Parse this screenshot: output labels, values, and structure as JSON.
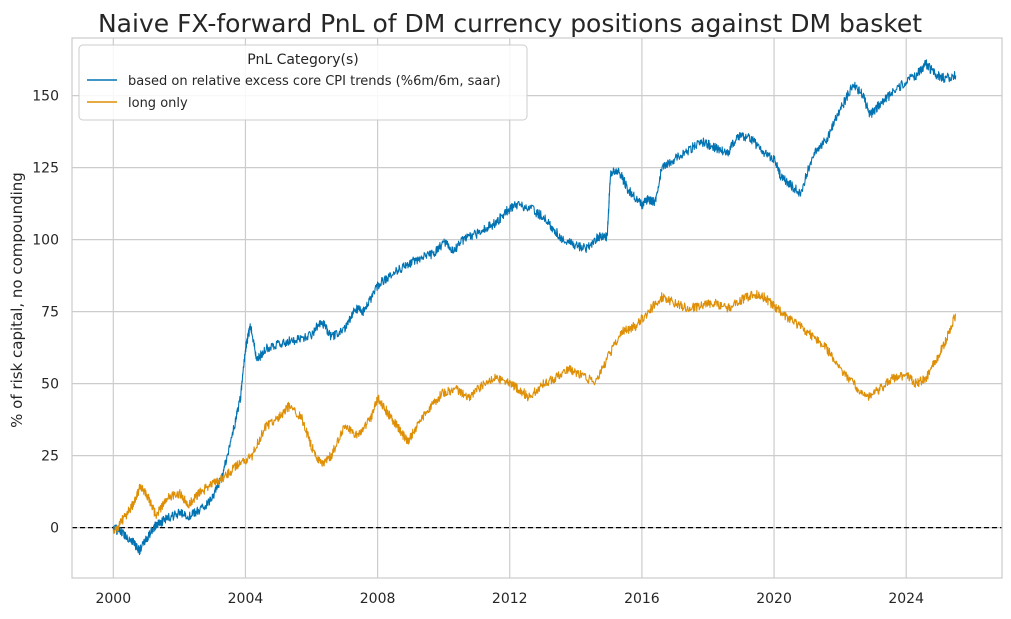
{
  "chart_data": {
    "type": "line",
    "title": "Naive FX-forward PnL of DM currency positions against DM basket",
    "xlabel": "",
    "ylabel": "% of risk capital, no compounding",
    "xlim": [
      1998.75,
      2026.9
    ],
    "ylim": [
      -17.5,
      170
    ],
    "x_ticks": [
      2000,
      2004,
      2008,
      2012,
      2016,
      2020,
      2024
    ],
    "x_tick_labels": [
      "2000",
      "2004",
      "2008",
      "2012",
      "2016",
      "2020",
      "2024"
    ],
    "y_ticks": [
      0,
      25,
      50,
      75,
      100,
      125,
      150
    ],
    "y_tick_labels": [
      "0",
      "25",
      "50",
      "75",
      "100",
      "125",
      "150"
    ],
    "grid": true,
    "reference_line": {
      "y": 0,
      "style": "dashed",
      "color": "#000000"
    },
    "legend": {
      "title": "PnL Category(s)",
      "placement": "top-left"
    },
    "series": [
      {
        "name": "based on relative excess core CPI trends (%6m/6m, saar)",
        "color": "#0173b2",
        "points": [
          [
            2000.0,
            0
          ],
          [
            2000.3,
            -2
          ],
          [
            2000.6,
            -5
          ],
          [
            2000.8,
            -8
          ],
          [
            2001.0,
            -4
          ],
          [
            2001.3,
            1
          ],
          [
            2001.6,
            3
          ],
          [
            2002.0,
            5
          ],
          [
            2002.3,
            4
          ],
          [
            2002.6,
            6
          ],
          [
            2003.0,
            10
          ],
          [
            2003.3,
            18
          ],
          [
            2003.6,
            32
          ],
          [
            2003.85,
            45
          ],
          [
            2004.0,
            62
          ],
          [
            2004.15,
            70
          ],
          [
            2004.35,
            58
          ],
          [
            2004.6,
            62
          ],
          [
            2005.0,
            64
          ],
          [
            2005.5,
            65
          ],
          [
            2006.0,
            67
          ],
          [
            2006.3,
            72
          ],
          [
            2006.6,
            66
          ],
          [
            2007.0,
            69
          ],
          [
            2007.3,
            76
          ],
          [
            2007.6,
            75
          ],
          [
            2008.0,
            84
          ],
          [
            2008.3,
            87
          ],
          [
            2008.7,
            90
          ],
          [
            2009.0,
            92
          ],
          [
            2009.4,
            94
          ],
          [
            2009.7,
            95
          ],
          [
            2010.0,
            99
          ],
          [
            2010.3,
            96
          ],
          [
            2010.6,
            100
          ],
          [
            2011.0,
            102
          ],
          [
            2011.3,
            104
          ],
          [
            2011.6,
            106
          ],
          [
            2011.9,
            110
          ],
          [
            2012.2,
            112
          ],
          [
            2012.6,
            111
          ],
          [
            2013.0,
            108
          ],
          [
            2013.3,
            104
          ],
          [
            2013.6,
            100
          ],
          [
            2014.0,
            98
          ],
          [
            2014.3,
            97
          ],
          [
            2014.7,
            101
          ],
          [
            2014.95,
            101
          ],
          [
            2015.05,
            123
          ],
          [
            2015.3,
            124
          ],
          [
            2015.6,
            117
          ],
          [
            2016.0,
            112
          ],
          [
            2016.2,
            114
          ],
          [
            2016.4,
            113
          ],
          [
            2016.6,
            125
          ],
          [
            2017.0,
            128
          ],
          [
            2017.4,
            131
          ],
          [
            2017.8,
            134
          ],
          [
            2018.2,
            132
          ],
          [
            2018.6,
            130
          ],
          [
            2018.9,
            136
          ],
          [
            2019.3,
            135
          ],
          [
            2019.7,
            130
          ],
          [
            2020.0,
            128
          ],
          [
            2020.2,
            122
          ],
          [
            2020.5,
            119
          ],
          [
            2020.8,
            116
          ],
          [
            2021.2,
            130
          ],
          [
            2021.6,
            135
          ],
          [
            2022.0,
            145
          ],
          [
            2022.4,
            154
          ],
          [
            2022.7,
            150
          ],
          [
            2022.9,
            143
          ],
          [
            2023.2,
            147
          ],
          [
            2023.5,
            150
          ],
          [
            2024.0,
            155
          ],
          [
            2024.3,
            157
          ],
          [
            2024.6,
            161
          ],
          [
            2024.9,
            157
          ],
          [
            2025.2,
            156
          ],
          [
            2025.5,
            157
          ]
        ]
      },
      {
        "name": "long only",
        "color": "#de8f05",
        "points": [
          [
            2000.0,
            -2
          ],
          [
            2000.3,
            3
          ],
          [
            2000.6,
            8
          ],
          [
            2000.8,
            14
          ],
          [
            2001.0,
            12
          ],
          [
            2001.3,
            4
          ],
          [
            2001.6,
            10
          ],
          [
            2002.0,
            12
          ],
          [
            2002.3,
            8
          ],
          [
            2002.6,
            12
          ],
          [
            2003.0,
            15
          ],
          [
            2003.4,
            18
          ],
          [
            2003.8,
            22
          ],
          [
            2004.2,
            25
          ],
          [
            2004.6,
            35
          ],
          [
            2005.0,
            38
          ],
          [
            2005.3,
            42
          ],
          [
            2005.7,
            38
          ],
          [
            2006.0,
            28
          ],
          [
            2006.3,
            22
          ],
          [
            2006.6,
            25
          ],
          [
            2007.0,
            35
          ],
          [
            2007.4,
            32
          ],
          [
            2007.8,
            38
          ],
          [
            2008.0,
            45
          ],
          [
            2008.3,
            40
          ],
          [
            2008.6,
            35
          ],
          [
            2008.9,
            30
          ],
          [
            2009.2,
            35
          ],
          [
            2009.6,
            42
          ],
          [
            2010.0,
            47
          ],
          [
            2010.4,
            48
          ],
          [
            2010.8,
            45
          ],
          [
            2011.2,
            50
          ],
          [
            2011.6,
            52
          ],
          [
            2012.0,
            50
          ],
          [
            2012.3,
            48
          ],
          [
            2012.6,
            45
          ],
          [
            2013.0,
            50
          ],
          [
            2013.4,
            52
          ],
          [
            2013.8,
            55
          ],
          [
            2014.2,
            53
          ],
          [
            2014.6,
            50
          ],
          [
            2015.0,
            60
          ],
          [
            2015.4,
            68
          ],
          [
            2015.8,
            70
          ],
          [
            2016.2,
            75
          ],
          [
            2016.6,
            80
          ],
          [
            2017.0,
            78
          ],
          [
            2017.4,
            76
          ],
          [
            2017.8,
            77
          ],
          [
            2018.2,
            78
          ],
          [
            2018.6,
            76
          ],
          [
            2019.0,
            79
          ],
          [
            2019.4,
            81
          ],
          [
            2019.7,
            80
          ],
          [
            2020.0,
            77
          ],
          [
            2020.4,
            73
          ],
          [
            2020.8,
            70
          ],
          [
            2021.2,
            66
          ],
          [
            2021.6,
            62
          ],
          [
            2022.0,
            55
          ],
          [
            2022.4,
            50
          ],
          [
            2022.8,
            45
          ],
          [
            2023.2,
            48
          ],
          [
            2023.6,
            52
          ],
          [
            2024.0,
            53
          ],
          [
            2024.3,
            50
          ],
          [
            2024.6,
            52
          ],
          [
            2024.9,
            58
          ],
          [
            2025.2,
            65
          ],
          [
            2025.5,
            74
          ]
        ]
      }
    ]
  }
}
